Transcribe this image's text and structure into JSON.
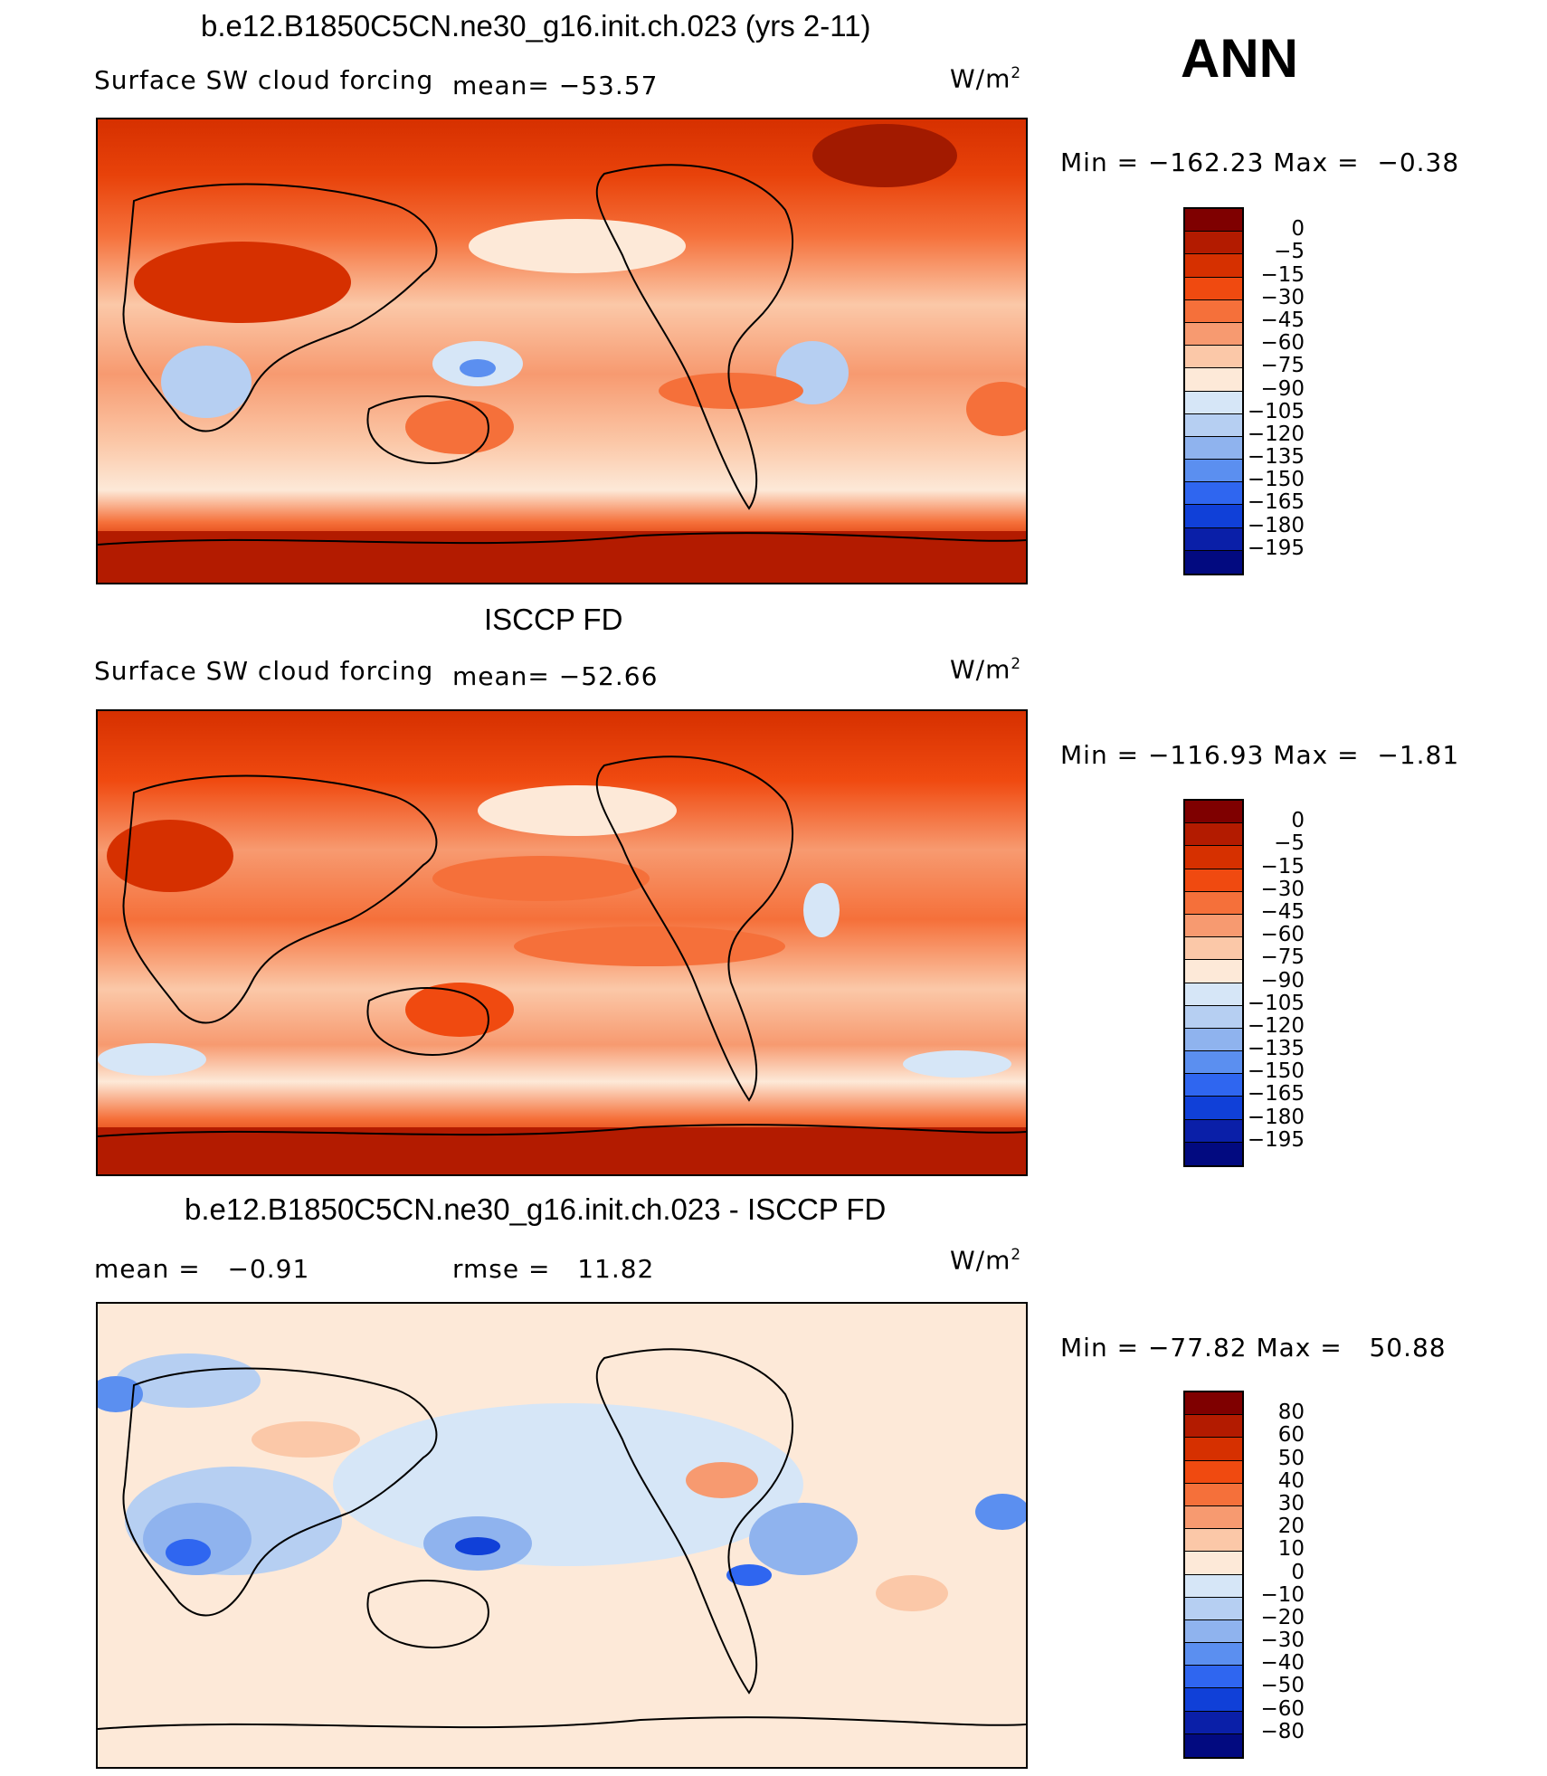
{
  "season": "ANN",
  "unit_base": "W/m",
  "unit_exp": "2",
  "panels": [
    {
      "title": "b.e12.B1850C5CN.ne30_g16.init.ch.023 (yrs 2-11)",
      "left_label": "Surface SW cloud forcing",
      "stat_label": "mean=",
      "stat_value": "−53.57",
      "min_label": "Min",
      "min_value": "−162.23",
      "max_label": "Max",
      "max_value": "−0.38"
    },
    {
      "title": "ISCCP FD",
      "left_label": "Surface SW cloud forcing",
      "stat_label": "mean=",
      "stat_value": "−52.66",
      "min_label": "Min",
      "min_value": "−116.93",
      "max_label": "Max",
      "max_value": "−1.81"
    },
    {
      "title": "b.e12.B1850C5CN.ne30_g16.init.ch.023 - ISCCP FD",
      "mean_label": "mean =",
      "mean_value": "−0.91",
      "rmse_label": "rmse =",
      "rmse_value": "11.82",
      "min_label": "Min",
      "min_value": "−77.82",
      "max_label": "Max",
      "max_value": "50.88"
    }
  ],
  "chart_data": [
    {
      "type": "heatmap",
      "title": "b.e12.B1850C5CN.ne30_g16.init.ch.023 (yrs 2-11)",
      "variable": "Surface SW cloud forcing",
      "units": "W/m^2",
      "mean": -53.57,
      "min": -162.23,
      "max": -0.38,
      "colorbar_levels": [
        "0",
        "−5",
        "−15",
        "−30",
        "−45",
        "−60",
        "−75",
        "−90",
        "−105",
        "−120",
        "−135",
        "−150",
        "−165",
        "−180",
        "−195"
      ],
      "colorbar_colors": [
        "#7f0000",
        "#b31b00",
        "#d63000",
        "#f04a10",
        "#f5703a",
        "#f79a70",
        "#fbc8a8",
        "#fde9d8",
        "#d6e6f7",
        "#b6cff2",
        "#8fb3ee",
        "#5b8ff0",
        "#2f66f0",
        "#1040d8",
        "#0a1fa8",
        "#020a80"
      ]
    },
    {
      "type": "heatmap",
      "title": "ISCCP FD",
      "variable": "Surface SW cloud forcing",
      "units": "W/m^2",
      "mean": -52.66,
      "min": -116.93,
      "max": -1.81,
      "colorbar_levels": [
        "0",
        "−5",
        "−15",
        "−30",
        "−45",
        "−60",
        "−75",
        "−90",
        "−105",
        "−120",
        "−135",
        "−150",
        "−165",
        "−180",
        "−195"
      ],
      "colorbar_colors": [
        "#7f0000",
        "#b31b00",
        "#d63000",
        "#f04a10",
        "#f5703a",
        "#f79a70",
        "#fbc8a8",
        "#fde9d8",
        "#d6e6f7",
        "#b6cff2",
        "#8fb3ee",
        "#5b8ff0",
        "#2f66f0",
        "#1040d8",
        "#0a1fa8",
        "#020a80"
      ]
    },
    {
      "type": "heatmap",
      "title": "b.e12.B1850C5CN.ne30_g16.init.ch.023 - ISCCP FD",
      "units": "W/m^2",
      "mean": -0.91,
      "rmse": 11.82,
      "min": -77.82,
      "max": 50.88,
      "colorbar_levels": [
        "80",
        "60",
        "50",
        "40",
        "30",
        "20",
        "10",
        "0",
        "−10",
        "−20",
        "−30",
        "−40",
        "−50",
        "−60",
        "−80"
      ],
      "colorbar_colors": [
        "#7f0000",
        "#b31b00",
        "#d63000",
        "#f04a10",
        "#f5703a",
        "#f79a70",
        "#fbc8a8",
        "#fde9d8",
        "#d6e6f7",
        "#b6cff2",
        "#8fb3ee",
        "#5b8ff0",
        "#2f66f0",
        "#1040d8",
        "#0a1fa8",
        "#020a80"
      ]
    }
  ]
}
